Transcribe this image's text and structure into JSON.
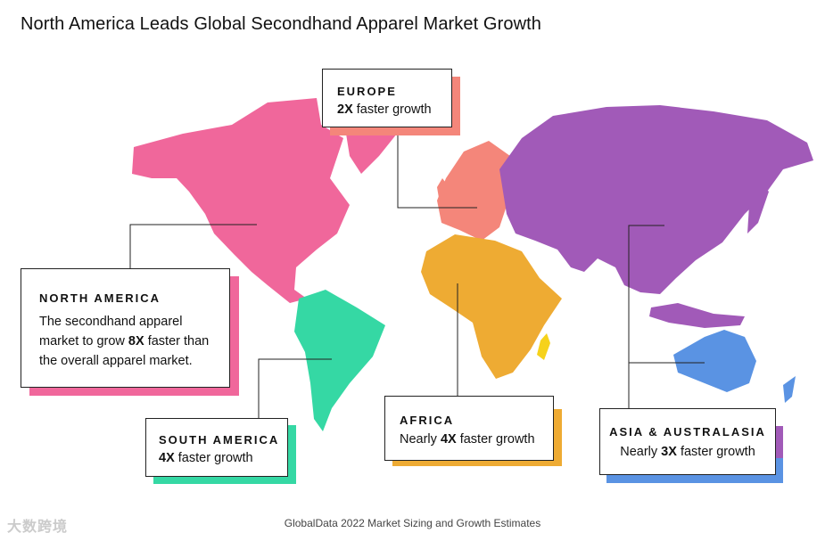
{
  "title": "North America Leads Global Secondhand Apparel Market Growth",
  "colors": {
    "north_america": "#f0679b",
    "europe": "#f4867a",
    "asia": "#a15ab8",
    "south_america": "#35d8a4",
    "africa": "#eeab33",
    "australasia": "#5a93e3",
    "madagascar": "#f6d21b"
  },
  "regions": {
    "europe": {
      "name": "EUROPE",
      "mult": "2X",
      "rest": " faster growth"
    },
    "north_america": {
      "name": "NORTH AMERICA",
      "l1": "The secondhand apparel",
      "l2a": "market to grow ",
      "mult": "8X",
      "l2b": " faster than",
      "l3": "the overall apparel market."
    },
    "south_america": {
      "name": "SOUTH AMERICA",
      "mult": "4X",
      "rest": " faster growth"
    },
    "africa": {
      "name": "AFRICA",
      "pre": "Nearly ",
      "mult": "4X",
      "rest": " faster growth"
    },
    "asia": {
      "name": "ASIA & AUSTRALASIA",
      "pre": "Nearly ",
      "mult": "3X",
      "rest": " faster growth"
    }
  },
  "footer": "GlobalData 2022 Market Sizing and Growth Estimates",
  "watermark": "大数跨境"
}
